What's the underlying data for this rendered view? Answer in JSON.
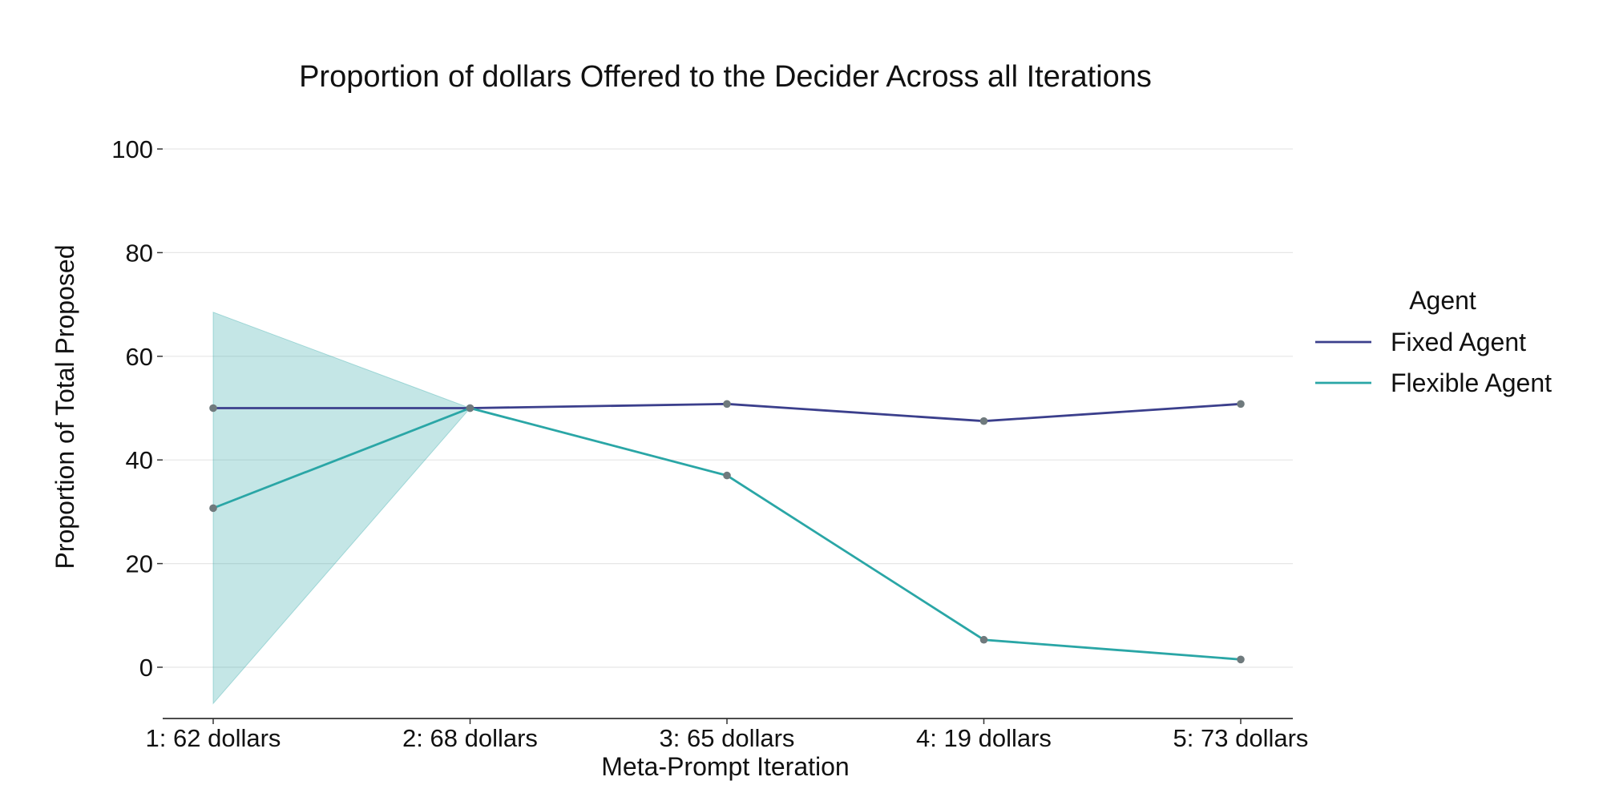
{
  "chart_data": {
    "type": "line",
    "title": "Proportion of dollars Offered to the Decider Across all Iterations",
    "xlabel": "Meta-Prompt Iteration",
    "ylabel": "Proportion of Total Proposed",
    "categories": [
      "1: 62 dollars",
      "2: 68 dollars",
      "3: 65 dollars",
      "4: 19 dollars",
      "5: 73 dollars"
    ],
    "ylim": [
      -10,
      100
    ],
    "yticks": [
      0,
      20,
      40,
      60,
      80,
      100
    ],
    "grid": true,
    "legend": {
      "title": "Agent",
      "placement": "right"
    },
    "series": [
      {
        "name": "Fixed Agent",
        "color": "#3b3f8c",
        "values": [
          50.0,
          50.0,
          50.8,
          47.5,
          50.8
        ]
      },
      {
        "name": "Flexible Agent",
        "color": "#2aa6a6",
        "values": [
          30.7,
          50.0,
          37.0,
          5.3,
          1.5
        ],
        "band_lower": [
          -7.0,
          50.0,
          37.0,
          5.3,
          1.5
        ],
        "band_upper": [
          68.5,
          50.0,
          37.0,
          5.3,
          1.5
        ],
        "band_color": "#2aa6a6"
      }
    ],
    "marker_color": "#6f7a7d"
  }
}
